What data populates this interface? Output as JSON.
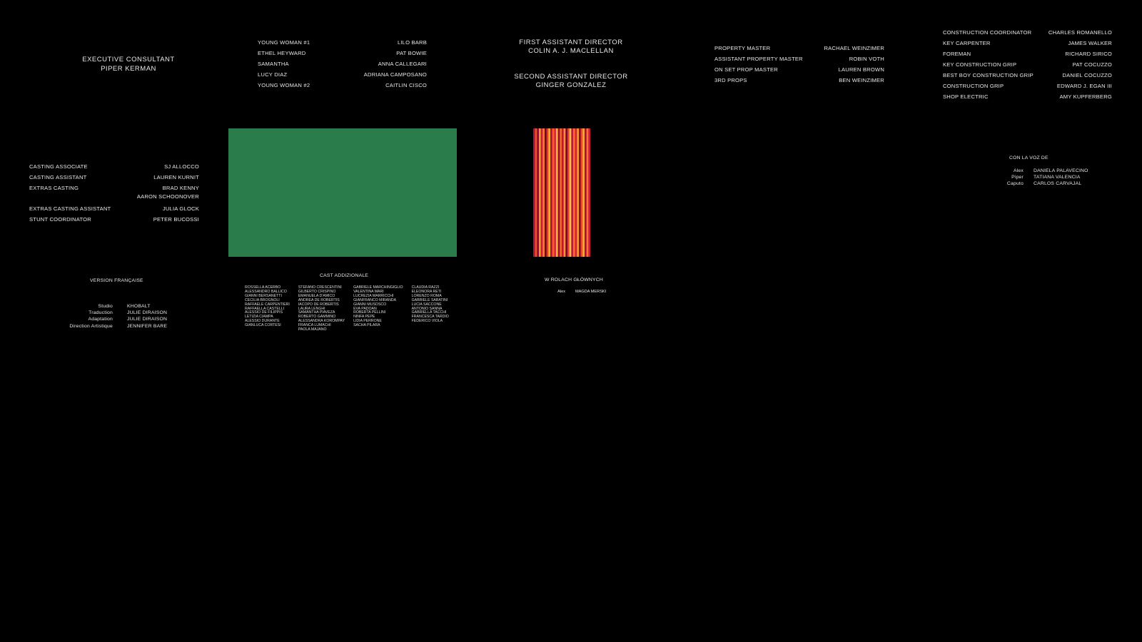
{
  "exec": {
    "title": "EXECUTIVE CONSULTANT",
    "name": "PIPER KERMAN"
  },
  "cast_small": [
    {
      "role": "YOUNG WOMAN #1",
      "name": "LILO BARB"
    },
    {
      "role": "ETHEL HEYWARD",
      "name": "PAT BOWIE"
    },
    {
      "role": "SAMANTHA",
      "name": "ANNA CALLEGARI"
    },
    {
      "role": "LUCY DIAZ",
      "name": "ADRIANA CAMPOSANO"
    },
    {
      "role": "YOUNG WOMAN #2",
      "name": "CAITLIN CISCO"
    }
  ],
  "ad": {
    "first_title": "FIRST ASSISTANT DIRECTOR",
    "first_name": "COLIN A. J. MACLELLAN",
    "second_title": "SECOND ASSISTANT DIRECTOR",
    "second_name": "GINGER GONZALEZ"
  },
  "props": [
    {
      "role": "PROPERTY MASTER",
      "name": "RACHAEL WEINZIMER"
    },
    {
      "role": "ASSISTANT PROPERTY MASTER",
      "name": "ROBIN VOTH"
    },
    {
      "role": "ON SET PROP MASTER",
      "name": "LAUREN BROWN"
    },
    {
      "role": "3RD PROPS",
      "name": "BEN WEINZIMER"
    }
  ],
  "construction": [
    {
      "role": "CONSTRUCTION COORDINATOR",
      "name": "CHARLES ROMANELLO"
    },
    {
      "role": "KEY CARPENTER",
      "name": "JAMES WALKER"
    },
    {
      "role": "FOREMAN",
      "name": "RICHARD SIRICO"
    },
    {
      "role": "KEY CONSTRUCTION GRIP",
      "name": "PAT COCUZZO"
    },
    {
      "role": "BEST BOY CONSTRUCTION GRIP",
      "name": "DANIEL COCUZZO"
    },
    {
      "role": "CONSTRUCTION GRIP",
      "name": "EDWARD J. EGAN III"
    },
    {
      "role": "SHOP ELECTRIC",
      "name": "AMY KUPFERBERG"
    }
  ],
  "casting": [
    {
      "role": "CASTING ASSOCIATE",
      "name": "SJ ALLOCCO"
    },
    {
      "role": "CASTING ASSISTANT",
      "name": "LAUREN KURNIT"
    },
    {
      "role": "EXTRAS CASTING",
      "name": "BRAD KENNY",
      "name2": "AARON SCHOONOVER"
    },
    {
      "role": "EXTRAS CASTING ASSISTANT",
      "name": "JULIA GLOCK"
    },
    {
      "role": "STUNT COORDINATOR",
      "name": "PETER BUCOSSI"
    }
  ],
  "spanish": {
    "title": "CON LA VOZ DE",
    "rows": [
      {
        "k": "Alex",
        "v": "DANIELA PALAVECINO"
      },
      {
        "k": "Piper",
        "v": "TATIANA VALENCIA"
      },
      {
        "k": "Caputo",
        "v": "CARLOS CARVAJAL"
      }
    ]
  },
  "french": {
    "title": "VERSION FRANÇAISE",
    "rows": [
      {
        "k": "Studio",
        "v": "KHOBALT"
      },
      {
        "k": "Traduction",
        "v": "JULIE DIRAISON"
      },
      {
        "k": "Adaptation",
        "v": "JULIE DIRAISON"
      },
      {
        "k": "Direction Artistique",
        "v": "JENNIFER BARE"
      }
    ]
  },
  "italian": {
    "title": "CAST ADDIZIONALE",
    "cols": [
      [
        "ROSSELLA ACERBO",
        "ALESSANDRO BALLICO",
        "GIANNI BERSANETTI",
        "CECILIA BROGNOLI",
        "RAFFAELE CARPENTIERI",
        "RAFFAELLA CASTELLI",
        "ALESSIO DE FILIPPIS",
        "LETIZIA CIAMPA",
        "ALESSIO DURANTE",
        "GIANLUCA CORTESI"
      ],
      [
        "STEFANO CRESCENTINI",
        "GILBERTO CRISPINO",
        "EMANUELA D'AMICO",
        "ANDREA DE ROBERTIS",
        "IACOPO DE ROBERTIS",
        "LAURA LENGHI",
        "SAMANTHA PIAVEZA",
        "ROBERTO GAMMINO",
        "ALESSANDRA KOROMPAY",
        "FRANCA LUMACHI",
        "PAOLA MAJANO"
      ],
      [
        "GABRIELE MARCHINGIGLIO",
        "VALENTINA MARI",
        "LUCREZIA MARRICCHI",
        "GIANFRANCO MIRANDA",
        "GIANNI MUSOSCO",
        "EVA PADOAN",
        "ROBERTA PELLINI",
        "NINFA PEPE",
        "LIDIA PERRONE",
        "SACHA PILARA"
      ],
      [
        "CLAUDIA RAZZI",
        "ELEONORA RETI",
        "LORENZO ROMA",
        "GABRIELE SABATINI",
        "LUCIA SACCONE",
        "ANTONIO SANNA",
        "GABRIELLA TACCHI",
        "FRANCESCA TARDIO",
        "FEDERICO VIOLA"
      ]
    ]
  },
  "polish": {
    "title": "W ROLACH GŁÓWNYCH",
    "rows": [
      {
        "k": "Alex",
        "v": "MAGDA MERSKI"
      }
    ]
  },
  "barcode_colors": [
    "#b3103a",
    "#e8542a",
    "#8b0a2a",
    "#f09a2a",
    "#c21e3b",
    "#ff7a3a",
    "#6a0a20",
    "#e03a2a",
    "#f6a830",
    "#a51636",
    "#ff5a2a",
    "#d42a3a",
    "#ffb23a",
    "#9a0c2c",
    "#ef6a2a",
    "#c4143a",
    "#ff8c3a",
    "#7a0a22",
    "#e8402a",
    "#f5c04a",
    "#b8183c",
    "#ff6a2a",
    "#d02034",
    "#f49a30",
    "#8c0c28",
    "#e84a2a",
    "#ffa83a",
    "#a8123a",
    "#ff7036",
    "#c81c3a"
  ]
}
